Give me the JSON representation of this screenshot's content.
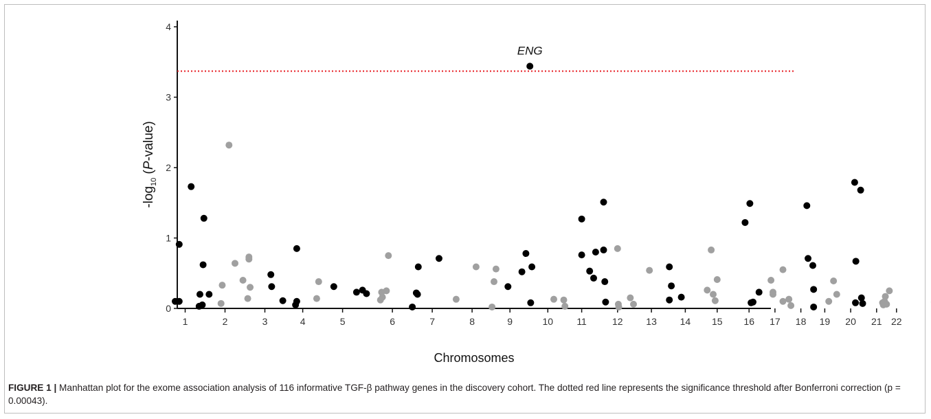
{
  "chart_data": {
    "type": "scatter",
    "subtype": "manhattan",
    "title": "",
    "xlabel": "Chromosomes",
    "ylabel": {
      "prefix": "-log",
      "subscript": "10",
      "open": " (",
      "italic": "P",
      "suffix": "-value)"
    },
    "ylim": [
      0,
      4.1
    ],
    "yticks": [
      0,
      1,
      2,
      3,
      4
    ],
    "grid": false,
    "legend": "none",
    "colors": {
      "odd": "#000000",
      "even": "#a0a0a0",
      "threshold": "#e8242a"
    },
    "threshold": {
      "value": 3.37,
      "style": "dotted",
      "color": "#e8242a"
    },
    "annotation": {
      "text": "ENG",
      "chromosome": 9,
      "value": 3.44
    },
    "chromosomes": [
      {
        "label": "1",
        "pos": 1.75
      },
      {
        "label": "2",
        "pos": 2.75
      },
      {
        "label": "3",
        "pos": 3.75
      },
      {
        "label": "4",
        "pos": 4.7
      },
      {
        "label": "5",
        "pos": 5.7
      },
      {
        "label": "6",
        "pos": 6.95
      },
      {
        "label": "7",
        "pos": 7.95
      },
      {
        "label": "8",
        "pos": 8.95
      },
      {
        "label": "9",
        "pos": 9.9
      },
      {
        "label": "10",
        "pos": 10.85
      },
      {
        "label": "11",
        "pos": 11.7
      },
      {
        "label": "12",
        "pos": 12.6
      },
      {
        "label": "13",
        "pos": 13.45
      },
      {
        "label": "14",
        "pos": 14.3
      },
      {
        "label": "15",
        "pos": 15.1
      },
      {
        "label": "16",
        "pos": 15.9
      },
      {
        "label": "17",
        "pos": 16.55
      },
      {
        "label": "18",
        "pos": 17.2
      },
      {
        "label": "19",
        "pos": 17.8
      },
      {
        "label": "20",
        "pos": 18.45
      },
      {
        "label": "21",
        "pos": 19.1
      },
      {
        "label": "22",
        "pos": 19.6
      }
    ],
    "points": [
      {
        "x": 1.5,
        "y": 0.1,
        "chr": 1
      },
      {
        "x": 1.6,
        "y": 0.1,
        "chr": 1
      },
      {
        "x": 1.6,
        "y": 0.91,
        "chr": 1
      },
      {
        "x": 1.9,
        "y": 1.73,
        "chr": 1
      },
      {
        "x": 2.1,
        "y": 0.03,
        "chr": 1
      },
      {
        "x": 2.12,
        "y": 0.2,
        "chr": 1
      },
      {
        "x": 2.18,
        "y": 0.05,
        "chr": 1
      },
      {
        "x": 2.2,
        "y": 0.62,
        "chr": 1
      },
      {
        "x": 2.22,
        "y": 1.28,
        "chr": 1
      },
      {
        "x": 2.35,
        "y": 0.2,
        "chr": 1
      },
      {
        "x": 2.65,
        "y": 0.07,
        "chr": 2
      },
      {
        "x": 2.68,
        "y": 0.33,
        "chr": 2
      },
      {
        "x": 2.85,
        "y": 2.32,
        "chr": 2
      },
      {
        "x": 3.0,
        "y": 0.64,
        "chr": 2
      },
      {
        "x": 3.2,
        "y": 0.4,
        "chr": 2
      },
      {
        "x": 3.32,
        "y": 0.14,
        "chr": 2
      },
      {
        "x": 3.35,
        "y": 0.7,
        "chr": 2
      },
      {
        "x": 3.35,
        "y": 0.73,
        "chr": 2
      },
      {
        "x": 3.38,
        "y": 0.3,
        "chr": 2
      },
      {
        "x": 3.9,
        "y": 0.48,
        "chr": 3
      },
      {
        "x": 3.92,
        "y": 0.31,
        "chr": 3
      },
      {
        "x": 4.2,
        "y": 0.11,
        "chr": 3
      },
      {
        "x": 4.52,
        "y": 0.05,
        "chr": 3
      },
      {
        "x": 4.55,
        "y": 0.1,
        "chr": 3
      },
      {
        "x": 4.55,
        "y": 0.85,
        "chr": 3
      },
      {
        "x": 5.05,
        "y": 0.14,
        "chr": 4
      },
      {
        "x": 5.1,
        "y": 0.38,
        "chr": 4
      },
      {
        "x": 5.48,
        "y": 0.31,
        "chr": 5
      },
      {
        "x": 6.05,
        "y": 0.23,
        "chr": 5
      },
      {
        "x": 6.2,
        "y": 0.26,
        "chr": 5
      },
      {
        "x": 6.3,
        "y": 0.21,
        "chr": 5
      },
      {
        "x": 6.65,
        "y": 0.12,
        "chr": 6
      },
      {
        "x": 6.68,
        "y": 0.23,
        "chr": 6
      },
      {
        "x": 6.7,
        "y": 0.16,
        "chr": 6
      },
      {
        "x": 6.8,
        "y": 0.25,
        "chr": 6
      },
      {
        "x": 6.85,
        "y": 0.75,
        "chr": 6
      },
      {
        "x": 7.45,
        "y": 0.02,
        "chr": 7
      },
      {
        "x": 7.55,
        "y": 0.22,
        "chr": 7
      },
      {
        "x": 7.58,
        "y": 0.2,
        "chr": 7
      },
      {
        "x": 7.6,
        "y": 0.59,
        "chr": 7
      },
      {
        "x": 8.12,
        "y": 0.71,
        "chr": 7
      },
      {
        "x": 8.55,
        "y": 0.13,
        "chr": 8
      },
      {
        "x": 9.05,
        "y": 0.59,
        "chr": 8
      },
      {
        "x": 9.45,
        "y": 0.02,
        "chr": 8
      },
      {
        "x": 9.5,
        "y": 0.38,
        "chr": 8
      },
      {
        "x": 9.55,
        "y": 0.56,
        "chr": 8
      },
      {
        "x": 9.85,
        "y": 0.31,
        "chr": 9
      },
      {
        "x": 10.2,
        "y": 0.52,
        "chr": 9
      },
      {
        "x": 10.3,
        "y": 0.78,
        "chr": 9
      },
      {
        "x": 10.4,
        "y": 3.44,
        "chr": 9
      },
      {
        "x": 10.42,
        "y": 0.08,
        "chr": 9
      },
      {
        "x": 10.45,
        "y": 0.59,
        "chr": 9
      },
      {
        "x": 11.0,
        "y": 0.13,
        "chr": 10
      },
      {
        "x": 11.25,
        "y": 0.12,
        "chr": 10
      },
      {
        "x": 11.28,
        "y": 0.03,
        "chr": 10
      },
      {
        "x": 11.7,
        "y": 0.76,
        "chr": 11
      },
      {
        "x": 11.7,
        "y": 1.27,
        "chr": 11
      },
      {
        "x": 11.9,
        "y": 0.53,
        "chr": 11
      },
      {
        "x": 12.0,
        "y": 0.43,
        "chr": 11
      },
      {
        "x": 12.05,
        "y": 0.8,
        "chr": 11
      },
      {
        "x": 12.25,
        "y": 1.51,
        "chr": 11
      },
      {
        "x": 12.25,
        "y": 0.83,
        "chr": 11
      },
      {
        "x": 12.28,
        "y": 0.38,
        "chr": 11
      },
      {
        "x": 12.3,
        "y": 0.09,
        "chr": 11
      },
      {
        "x": 12.6,
        "y": 0.85,
        "chr": 12
      },
      {
        "x": 12.62,
        "y": 0.06,
        "chr": 12
      },
      {
        "x": 12.63,
        "y": 0.02,
        "chr": 12
      },
      {
        "x": 12.92,
        "y": 0.15,
        "chr": 12
      },
      {
        "x": 13.0,
        "y": 0.06,
        "chr": 12
      },
      {
        "x": 13.4,
        "y": 0.54,
        "chr": 12
      },
      {
        "x": 13.9,
        "y": 0.59,
        "chr": 13
      },
      {
        "x": 13.9,
        "y": 0.12,
        "chr": 13
      },
      {
        "x": 13.95,
        "y": 0.32,
        "chr": 13
      },
      {
        "x": 14.2,
        "y": 0.16,
        "chr": 13
      },
      {
        "x": 14.85,
        "y": 0.26,
        "chr": 14
      },
      {
        "x": 14.95,
        "y": 0.83,
        "chr": 14
      },
      {
        "x": 15.0,
        "y": 0.2,
        "chr": 14
      },
      {
        "x": 15.05,
        "y": 0.11,
        "chr": 14
      },
      {
        "x": 15.1,
        "y": 0.41,
        "chr": 14
      },
      {
        "x": 15.8,
        "y": 1.22,
        "chr": 15
      },
      {
        "x": 15.92,
        "y": 1.49,
        "chr": 15
      },
      {
        "x": 15.95,
        "y": 0.08,
        "chr": 15
      },
      {
        "x": 16.0,
        "y": 0.09,
        "chr": 15
      },
      {
        "x": 16.15,
        "y": 0.23,
        "chr": 15
      },
      {
        "x": 16.45,
        "y": 0.4,
        "chr": 16
      },
      {
        "x": 16.5,
        "y": 0.23,
        "chr": 16
      },
      {
        "x": 16.5,
        "y": 0.2,
        "chr": 16
      },
      {
        "x": 16.75,
        "y": 0.55,
        "chr": 16
      },
      {
        "x": 16.75,
        "y": 0.1,
        "chr": 16
      },
      {
        "x": 16.9,
        "y": 0.13,
        "chr": 16
      },
      {
        "x": 16.95,
        "y": 0.04,
        "chr": 16
      },
      {
        "x": 17.35,
        "y": 1.46,
        "chr": 17
      },
      {
        "x": 17.38,
        "y": 0.71,
        "chr": 17
      },
      {
        "x": 17.5,
        "y": 0.61,
        "chr": 17
      },
      {
        "x": 17.52,
        "y": 0.27,
        "chr": 17
      },
      {
        "x": 17.52,
        "y": 0.02,
        "chr": 17
      },
      {
        "x": 17.9,
        "y": 0.1,
        "chr": 18
      },
      {
        "x": 18.02,
        "y": 0.39,
        "chr": 18
      },
      {
        "x": 18.1,
        "y": 0.2,
        "chr": 18
      },
      {
        "x": 18.55,
        "y": 1.79,
        "chr": 19
      },
      {
        "x": 18.57,
        "y": 0.08,
        "chr": 19
      },
      {
        "x": 18.58,
        "y": 0.67,
        "chr": 19
      },
      {
        "x": 18.7,
        "y": 1.68,
        "chr": 19
      },
      {
        "x": 18.72,
        "y": 0.15,
        "chr": 19
      },
      {
        "x": 18.75,
        "y": 0.07,
        "chr": 19
      },
      {
        "x": 19.25,
        "y": 0.08,
        "chr": 20
      },
      {
        "x": 19.27,
        "y": 0.05,
        "chr": 20
      },
      {
        "x": 19.3,
        "y": 0.1,
        "chr": 20
      },
      {
        "x": 19.32,
        "y": 0.17,
        "chr": 20
      },
      {
        "x": 19.35,
        "y": 0.06,
        "chr": 20
      },
      {
        "x": 19.42,
        "y": 0.25,
        "chr": 20
      },
      {
        "x": 20.55,
        "y": 0.09,
        "chr": 22
      },
      {
        "x": 20.57,
        "y": 0.47,
        "chr": 22
      },
      {
        "x": 20.6,
        "y": 0.41,
        "chr": 22
      }
    ]
  },
  "caption": {
    "label": "FIGURE 1 |",
    "text": " Manhattan plot for the exome association analysis of 116 informative TGF-β pathway genes in the discovery cohort. The dotted red line represents the significance threshold after Bonferroni correction (p = 0.00043)."
  }
}
